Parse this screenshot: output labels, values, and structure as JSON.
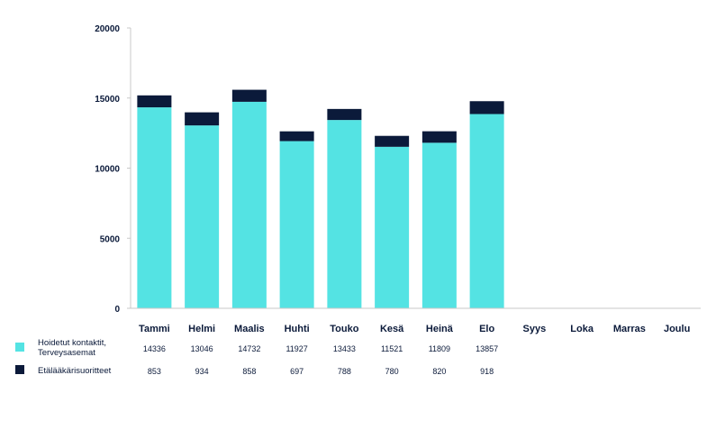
{
  "chart_data": {
    "type": "bar",
    "stacked": true,
    "categories": [
      "Tammi",
      "Helmi",
      "Maalis",
      "Huhti",
      "Touko",
      "Kesä",
      "Heinä",
      "Elo",
      "Syys",
      "Loka",
      "Marras",
      "Joulu"
    ],
    "series": [
      {
        "name_lines": [
          "Hoidetut kontaktit,",
          "Terveysasemat"
        ],
        "color": "#54e3e3",
        "values": [
          14336,
          13046,
          14732,
          11927,
          13433,
          11521,
          11809,
          13857,
          null,
          null,
          null,
          null
        ]
      },
      {
        "name_lines": [
          "Etälääkärisuoritteet"
        ],
        "color": "#0b1a3a",
        "values": [
          853,
          934,
          858,
          697,
          788,
          780,
          820,
          918,
          null,
          null,
          null,
          null
        ]
      }
    ],
    "value_labels": [
      [
        "14336",
        "13046",
        "14732",
        "11927",
        "13433",
        "11521",
        "11809",
        "13857",
        "",
        "",
        "",
        ""
      ],
      [
        "853",
        "934",
        "858",
        "697",
        "788",
        "780",
        "820",
        "918",
        "",
        "",
        "",
        ""
      ]
    ],
    "y_ticks": [
      0,
      5000,
      10000,
      15000,
      20000
    ],
    "y_tick_labels": [
      "0",
      "5000",
      "10000",
      "15000",
      "20000"
    ],
    "ylim": [
      0,
      20000
    ],
    "grid": false,
    "legend": "table-below"
  }
}
